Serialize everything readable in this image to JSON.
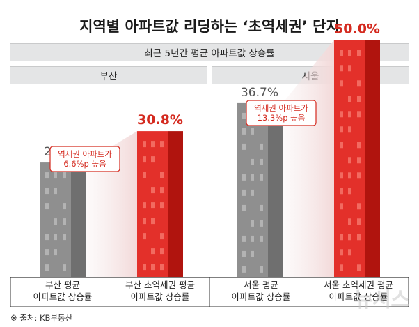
{
  "title": "지역별 아파트값 리딩하는 ‘초역세권’ 단지",
  "subtitle": "최근 5년간 평균 아파트값 상승률",
  "regions": [
    "부산",
    "서울"
  ],
  "source": "※ 출처: KB부동산",
  "watermark": "뉴시스",
  "colors": {
    "gray": "#8c8c8c",
    "red": "#e02b20",
    "highlight": "#d42a1f"
  },
  "chart_data": {
    "type": "bar",
    "title": "지역별 아파트값 리딩하는 ‘초역세권’ 단지",
    "ylabel": "",
    "categories": [
      [
        "부산 평균",
        "아파트값 상승률"
      ],
      [
        "부산 초역세권 평균",
        "아파트값 상승률"
      ],
      [
        "서울 평균",
        "아파트값 상승률"
      ],
      [
        "서울 초역세권 평균",
        "아파트값 상승률"
      ]
    ],
    "values": [
      24.2,
      30.8,
      36.7,
      50.0
    ],
    "value_labels": [
      "24.2%",
      "30.8%",
      "36.7%",
      "50.0%"
    ],
    "ylim": [
      0,
      54
    ],
    "annotations": [
      {
        "lines": [
          "역세권 아파트가",
          "6.6%p 높음"
        ]
      },
      {
        "lines": [
          "역세권 아파트가",
          "13.3%p 높음"
        ]
      }
    ]
  }
}
